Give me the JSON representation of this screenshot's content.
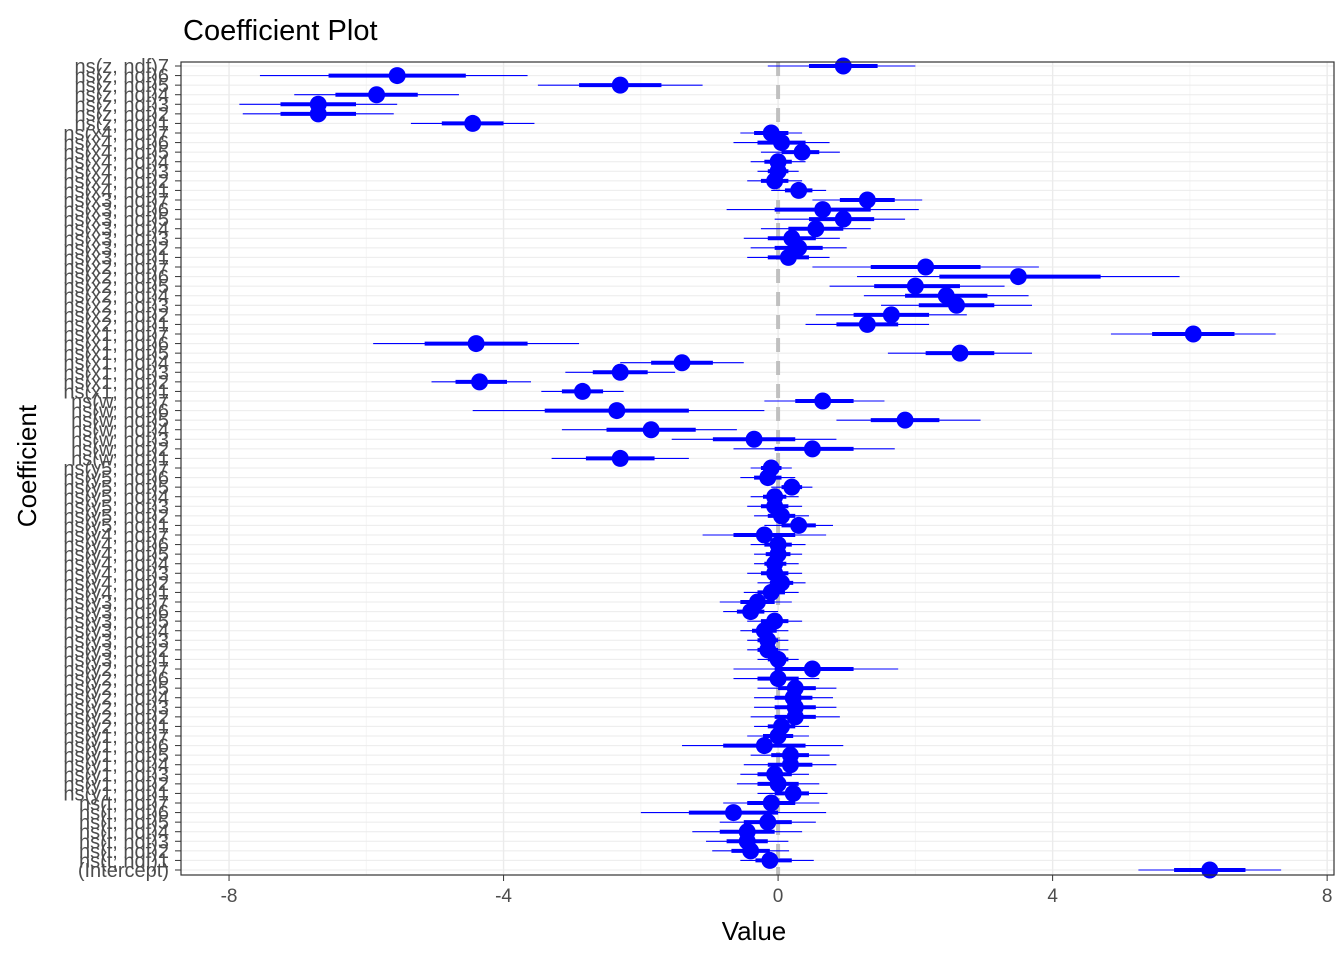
{
  "chart_data": {
    "type": "coefficient-plot",
    "title": "Coefficient Plot",
    "xlabel": "Value",
    "ylabel": "Coefficient",
    "xlim": [
      -8.7,
      8.1
    ],
    "xticks": [
      -8,
      -4,
      0,
      4,
      8
    ],
    "xtick_labels": [
      "-8",
      "-4",
      "0",
      "4",
      "8"
    ],
    "zero_line": 0,
    "colors": {
      "point": "#0000ff",
      "zero_line": "#c0c0c0",
      "grid_major": "#ebebeb",
      "grid_minor": "#f5f5f5",
      "panel_border": "#333333"
    },
    "series": [
      {
        "name": "(Intercept)",
        "value": 6.29,
        "inner": [
          5.77,
          6.81
        ],
        "outer": [
          5.25,
          7.33
        ]
      },
      {
        "name": "ns(t, ndf)1",
        "value": -0.12,
        "inner": [
          -0.33,
          0.2
        ],
        "outer": [
          -0.55,
          0.52
        ]
      },
      {
        "name": "ns(t, ndf)2",
        "value": -0.4,
        "inner": [
          -0.68,
          -0.12
        ],
        "outer": [
          -0.96,
          0.16
        ]
      },
      {
        "name": "ns(t, ndf)3",
        "value": -0.45,
        "inner": [
          -0.75,
          -0.15
        ],
        "outer": [
          -1.05,
          0.15
        ]
      },
      {
        "name": "ns(t, ndf)4",
        "value": -0.45,
        "inner": [
          -0.85,
          -0.05
        ],
        "outer": [
          -1.25,
          0.35
        ]
      },
      {
        "name": "ns(t, ndf)5",
        "value": -0.15,
        "inner": [
          -0.5,
          0.2
        ],
        "outer": [
          -0.85,
          0.55
        ]
      },
      {
        "name": "ns(t, ndf)6",
        "value": -0.65,
        "inner": [
          -1.3,
          0.0
        ],
        "outer": [
          -2.0,
          0.7
        ]
      },
      {
        "name": "ns(t, ndf)7",
        "value": -0.1,
        "inner": [
          -0.45,
          0.25
        ],
        "outer": [
          -0.8,
          0.6
        ]
      },
      {
        "name": "ns(y1, ndf)1",
        "value": 0.22,
        "inner": [
          -0.05,
          0.45
        ],
        "outer": [
          -0.3,
          0.72
        ]
      },
      {
        "name": "ns(y1, ndf)2",
        "value": 0.0,
        "inner": [
          -0.3,
          0.3
        ],
        "outer": [
          -0.6,
          0.6
        ]
      },
      {
        "name": "ns(y1, ndf)3",
        "value": -0.05,
        "inner": [
          -0.3,
          0.2
        ],
        "outer": [
          -0.55,
          0.45
        ]
      },
      {
        "name": "ns(y1, ndf)4",
        "value": 0.18,
        "inner": [
          -0.15,
          0.5
        ],
        "outer": [
          -0.5,
          0.85
        ]
      },
      {
        "name": "ns(y1, ndf)5",
        "value": 0.18,
        "inner": [
          -0.1,
          0.45
        ],
        "outer": [
          -0.4,
          0.75
        ]
      },
      {
        "name": "ns(y1, ndf)6",
        "value": -0.2,
        "inner": [
          -0.8,
          0.4
        ],
        "outer": [
          -1.4,
          0.95
        ]
      },
      {
        "name": "ns(y1, ndf)7",
        "value": 0.0,
        "inner": [
          -0.22,
          0.22
        ],
        "outer": [
          -0.45,
          0.45
        ]
      },
      {
        "name": "ns(y2, ndf)1",
        "value": 0.05,
        "inner": [
          -0.15,
          0.25
        ],
        "outer": [
          -0.35,
          0.45
        ]
      },
      {
        "name": "ns(y2, ndf)2",
        "value": 0.25,
        "inner": [
          -0.05,
          0.55
        ],
        "outer": [
          -0.4,
          0.9
        ]
      },
      {
        "name": "ns(y2, ndf)3",
        "value": 0.25,
        "inner": [
          -0.05,
          0.55
        ],
        "outer": [
          -0.35,
          0.85
        ]
      },
      {
        "name": "ns(y2, ndf)4",
        "value": 0.22,
        "inner": [
          -0.05,
          0.5
        ],
        "outer": [
          -0.35,
          0.8
        ]
      },
      {
        "name": "ns(y2, ndf)5",
        "value": 0.25,
        "inner": [
          0.0,
          0.55
        ],
        "outer": [
          -0.3,
          0.85
        ]
      },
      {
        "name": "ns(y2, ndf)6",
        "value": 0.0,
        "inner": [
          -0.3,
          0.3
        ],
        "outer": [
          -0.65,
          0.6
        ]
      },
      {
        "name": "ns(y2, ndf)7",
        "value": 0.5,
        "inner": [
          -0.05,
          1.1
        ],
        "outer": [
          -0.65,
          1.75
        ]
      },
      {
        "name": "ns(y3, ndf)1",
        "value": 0.0,
        "inner": [
          -0.15,
          0.15
        ],
        "outer": [
          -0.3,
          0.3
        ]
      },
      {
        "name": "ns(y3, ndf)2",
        "value": -0.15,
        "inner": [
          -0.3,
          0.0
        ],
        "outer": [
          -0.45,
          0.15
        ]
      },
      {
        "name": "ns(y3, ndf)3",
        "value": -0.15,
        "inner": [
          -0.3,
          0.0
        ],
        "outer": [
          -0.45,
          0.15
        ]
      },
      {
        "name": "ns(y3, ndf)4",
        "value": -0.2,
        "inner": [
          -0.38,
          -0.02
        ],
        "outer": [
          -0.55,
          0.15
        ]
      },
      {
        "name": "ns(y3, ndf)5",
        "value": -0.05,
        "inner": [
          -0.25,
          0.15
        ],
        "outer": [
          -0.45,
          0.35
        ]
      },
      {
        "name": "ns(y3, ndf)6",
        "value": -0.4,
        "inner": [
          -0.6,
          -0.2
        ],
        "outer": [
          -0.8,
          0.0
        ]
      },
      {
        "name": "ns(y3, ndf)7",
        "value": -0.3,
        "inner": [
          -0.55,
          -0.05
        ],
        "outer": [
          -0.85,
          0.2
        ]
      },
      {
        "name": "ns(y4, ndf)1",
        "value": -0.1,
        "inner": [
          -0.3,
          0.1
        ],
        "outer": [
          -0.5,
          0.3
        ]
      },
      {
        "name": "ns(y4, ndf)2",
        "value": 0.05,
        "inner": [
          -0.12,
          0.22
        ],
        "outer": [
          -0.3,
          0.4
        ]
      },
      {
        "name": "ns(y4, ndf)3",
        "value": -0.05,
        "inner": [
          -0.25,
          0.15
        ],
        "outer": [
          -0.45,
          0.35
        ]
      },
      {
        "name": "ns(y4, ndf)4",
        "value": -0.05,
        "inner": [
          -0.2,
          0.12
        ],
        "outer": [
          -0.35,
          0.3
        ]
      },
      {
        "name": "ns(y4, ndf)5",
        "value": 0.0,
        "inner": [
          -0.18,
          0.18
        ],
        "outer": [
          -0.35,
          0.35
        ]
      },
      {
        "name": "ns(y4, ndf)6",
        "value": 0.0,
        "inner": [
          -0.2,
          0.2
        ],
        "outer": [
          -0.4,
          0.4
        ]
      },
      {
        "name": "ns(y4, ndf)7",
        "value": -0.2,
        "inner": [
          -0.65,
          0.25
        ],
        "outer": [
          -1.1,
          0.7
        ]
      },
      {
        "name": "ns(y5, ndf)1",
        "value": 0.3,
        "inner": [
          0.05,
          0.55
        ],
        "outer": [
          -0.2,
          0.8
        ]
      },
      {
        "name": "ns(y5, ndf)2",
        "value": 0.05,
        "inner": [
          -0.15,
          0.25
        ],
        "outer": [
          -0.35,
          0.45
        ]
      },
      {
        "name": "ns(y5, ndf)3",
        "value": -0.05,
        "inner": [
          -0.25,
          0.15
        ],
        "outer": [
          -0.45,
          0.35
        ]
      },
      {
        "name": "ns(y5, ndf)4",
        "value": -0.05,
        "inner": [
          -0.22,
          0.12
        ],
        "outer": [
          -0.4,
          0.3
        ]
      },
      {
        "name": "ns(y5, ndf)5",
        "value": 0.2,
        "inner": [
          0.05,
          0.35
        ],
        "outer": [
          -0.1,
          0.5
        ]
      },
      {
        "name": "ns(y5, ndf)6",
        "value": -0.15,
        "inner": [
          -0.35,
          0.05
        ],
        "outer": [
          -0.55,
          0.25
        ]
      },
      {
        "name": "ns(y5, ndf)7",
        "value": -0.1,
        "inner": [
          -0.25,
          0.05
        ],
        "outer": [
          -0.4,
          0.2
        ]
      },
      {
        "name": "ns(w, ndf)1",
        "value": -2.3,
        "inner": [
          -2.8,
          -1.8
        ],
        "outer": [
          -3.3,
          -1.3
        ]
      },
      {
        "name": "ns(w, ndf)2",
        "value": 0.5,
        "inner": [
          -0.05,
          1.1
        ],
        "outer": [
          -0.65,
          1.7
        ]
      },
      {
        "name": "ns(w, ndf)3",
        "value": -0.35,
        "inner": [
          -0.95,
          0.25
        ],
        "outer": [
          -1.55,
          0.85
        ]
      },
      {
        "name": "ns(w, ndf)4",
        "value": -1.85,
        "inner": [
          -2.5,
          -1.2
        ],
        "outer": [
          -3.15,
          -0.6
        ]
      },
      {
        "name": "ns(w, ndf)5",
        "value": 1.85,
        "inner": [
          1.35,
          2.35
        ],
        "outer": [
          0.85,
          2.95
        ]
      },
      {
        "name": "ns(w, ndf)6",
        "value": -2.35,
        "inner": [
          -3.4,
          -1.3
        ],
        "outer": [
          -4.45,
          -0.2
        ]
      },
      {
        "name": "ns(w, ndf)7",
        "value": 0.65,
        "inner": [
          0.25,
          1.1
        ],
        "outer": [
          -0.2,
          1.55
        ]
      },
      {
        "name": "ns(x1, ndf)1",
        "value": -2.85,
        "inner": [
          -3.15,
          -2.55
        ],
        "outer": [
          -3.45,
          -2.25
        ]
      },
      {
        "name": "ns(x1, ndf)2",
        "value": -4.35,
        "inner": [
          -4.7,
          -3.95
        ],
        "outer": [
          -5.05,
          -3.6
        ]
      },
      {
        "name": "ns(x1, ndf)3",
        "value": -2.3,
        "inner": [
          -2.7,
          -1.9
        ],
        "outer": [
          -3.1,
          -1.5
        ]
      },
      {
        "name": "ns(x1, ndf)4",
        "value": -1.4,
        "inner": [
          -1.85,
          -0.95
        ],
        "outer": [
          -2.3,
          -0.5
        ]
      },
      {
        "name": "ns(x1, ndf)5",
        "value": 2.65,
        "inner": [
          2.15,
          3.15
        ],
        "outer": [
          1.6,
          3.7
        ]
      },
      {
        "name": "ns(x1, ndf)6",
        "value": -4.4,
        "inner": [
          -5.15,
          -3.65
        ],
        "outer": [
          -5.9,
          -2.9
        ]
      },
      {
        "name": "ns(x1, ndf)7",
        "value": 6.05,
        "inner": [
          5.45,
          6.65
        ],
        "outer": [
          4.85,
          7.25
        ]
      },
      {
        "name": "ns(x2, ndf)1",
        "value": 1.3,
        "inner": [
          0.85,
          1.75
        ],
        "outer": [
          0.4,
          2.2
        ]
      },
      {
        "name": "ns(x2, ndf)2",
        "value": 1.65,
        "inner": [
          1.1,
          2.2
        ],
        "outer": [
          0.55,
          2.75
        ]
      },
      {
        "name": "ns(x2, ndf)3",
        "value": 2.6,
        "inner": [
          2.05,
          3.15
        ],
        "outer": [
          1.5,
          3.7
        ]
      },
      {
        "name": "ns(x2, ndf)4",
        "value": 2.45,
        "inner": [
          1.85,
          3.05
        ],
        "outer": [
          1.25,
          3.65
        ]
      },
      {
        "name": "ns(x2, ndf)5",
        "value": 2.0,
        "inner": [
          1.4,
          2.65
        ],
        "outer": [
          0.75,
          3.3
        ]
      },
      {
        "name": "ns(x2, ndf)6",
        "value": 3.5,
        "inner": [
          2.35,
          4.7
        ],
        "outer": [
          1.15,
          5.85
        ]
      },
      {
        "name": "ns(x2, ndf)7",
        "value": 2.15,
        "inner": [
          1.35,
          2.95
        ],
        "outer": [
          0.5,
          3.8
        ]
      },
      {
        "name": "ns(x3, ndf)1",
        "value": 0.15,
        "inner": [
          -0.15,
          0.45
        ],
        "outer": [
          -0.45,
          0.75
        ]
      },
      {
        "name": "ns(x3, ndf)2",
        "value": 0.3,
        "inner": [
          -0.05,
          0.65
        ],
        "outer": [
          -0.4,
          1.0
        ]
      },
      {
        "name": "ns(x3, ndf)3",
        "value": 0.2,
        "inner": [
          -0.15,
          0.55
        ],
        "outer": [
          -0.5,
          0.9
        ]
      },
      {
        "name": "ns(x3, ndf)4",
        "value": 0.55,
        "inner": [
          0.15,
          0.95
        ],
        "outer": [
          -0.25,
          1.35
        ]
      },
      {
        "name": "ns(x3, ndf)5",
        "value": 0.95,
        "inner": [
          0.45,
          1.4
        ],
        "outer": [
          -0.05,
          1.85
        ]
      },
      {
        "name": "ns(x3, ndf)6",
        "value": 0.65,
        "inner": [
          -0.05,
          1.35
        ],
        "outer": [
          -0.75,
          2.05
        ]
      },
      {
        "name": "ns(x3, ndf)7",
        "value": 1.3,
        "inner": [
          0.9,
          1.7
        ],
        "outer": [
          0.5,
          2.1
        ]
      },
      {
        "name": "ns(x4, ndf)1",
        "value": 0.3,
        "inner": [
          0.1,
          0.5
        ],
        "outer": [
          -0.1,
          0.7
        ]
      },
      {
        "name": "ns(x4, ndf)2",
        "value": -0.05,
        "inner": [
          -0.25,
          0.15
        ],
        "outer": [
          -0.45,
          0.35
        ]
      },
      {
        "name": "ns(x4, ndf)3",
        "value": 0.0,
        "inner": [
          -0.15,
          0.15
        ],
        "outer": [
          -0.3,
          0.3
        ]
      },
      {
        "name": "ns(x4, ndf)4",
        "value": 0.0,
        "inner": [
          -0.2,
          0.2
        ],
        "outer": [
          -0.4,
          0.4
        ]
      },
      {
        "name": "ns(x4, ndf)5",
        "value": 0.35,
        "inner": [
          0.05,
          0.6
        ],
        "outer": [
          -0.25,
          0.9
        ]
      },
      {
        "name": "ns(x4, ndf)6",
        "value": 0.05,
        "inner": [
          -0.3,
          0.4
        ],
        "outer": [
          -0.65,
          0.75
        ]
      },
      {
        "name": "ns(x4, ndf)7",
        "value": -0.1,
        "inner": [
          -0.35,
          0.15
        ],
        "outer": [
          -0.55,
          0.35
        ]
      },
      {
        "name": "ns(z, ndf)1",
        "value": -4.45,
        "inner": [
          -4.9,
          -4.0
        ],
        "outer": [
          -5.35,
          -3.55
        ]
      },
      {
        "name": "ns(z, ndf)2",
        "value": -6.7,
        "inner": [
          -7.25,
          -6.15
        ],
        "outer": [
          -7.8,
          -5.6
        ]
      },
      {
        "name": "ns(z, ndf)3",
        "value": -6.7,
        "inner": [
          -7.25,
          -6.15
        ],
        "outer": [
          -7.85,
          -5.55
        ]
      },
      {
        "name": "ns(z, ndf)4",
        "value": -5.85,
        "inner": [
          -6.45,
          -5.25
        ],
        "outer": [
          -7.05,
          -4.65
        ]
      },
      {
        "name": "ns(z, ndf)5",
        "value": -2.3,
        "inner": [
          -2.9,
          -1.7
        ],
        "outer": [
          -3.5,
          -1.1
        ]
      },
      {
        "name": "ns(z, ndf)6",
        "value": -5.55,
        "inner": [
          -6.55,
          -4.55
        ],
        "outer": [
          -7.55,
          -3.65
        ]
      },
      {
        "name": "ns(z, ndf)7",
        "value": 0.95,
        "inner": [
          0.45,
          1.45
        ],
        "outer": [
          -0.15,
          2.0
        ]
      }
    ]
  }
}
